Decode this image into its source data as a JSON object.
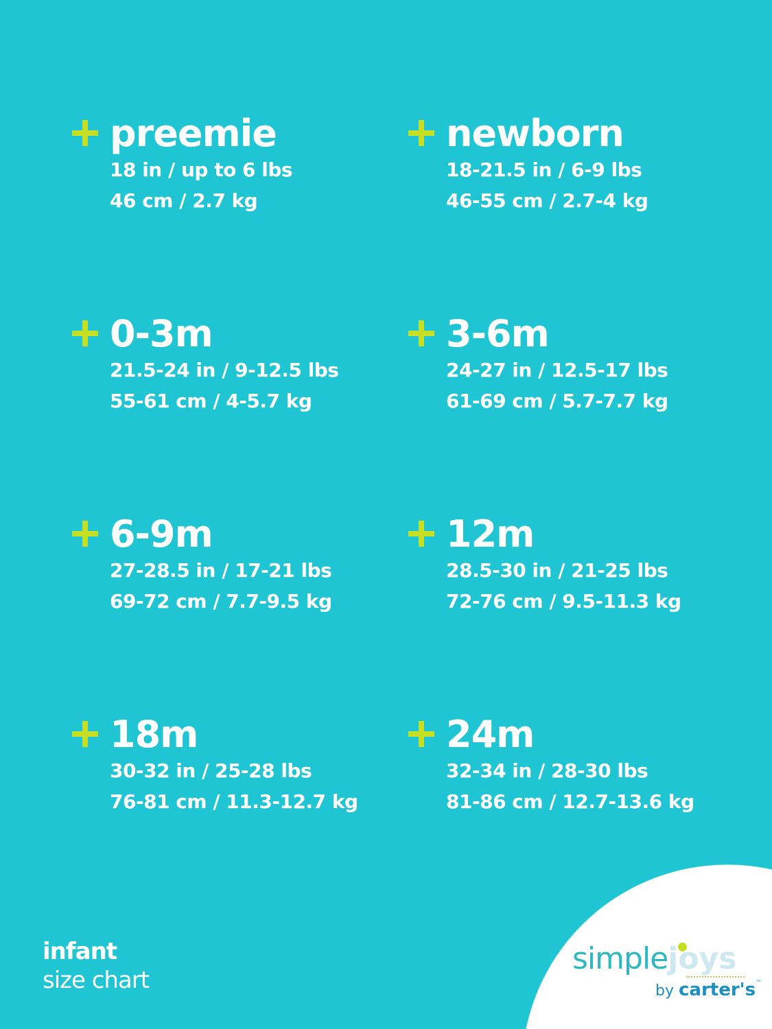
{
  "sizes": [
    {
      "label": "preemie",
      "imperial": "18 in / up to 6 lbs",
      "metric": "46 cm / 2.7 kg"
    },
    {
      "label": "newborn",
      "imperial": "18-21.5 in / 6-9 lbs",
      "metric": "46-55 cm / 2.7-4 kg"
    },
    {
      "label": "0-3m",
      "imperial": "21.5-24 in / 9-12.5 lbs",
      "metric": "55-61 cm / 4-5.7 kg"
    },
    {
      "label": "3-6m",
      "imperial": "24-27 in / 12.5-17 lbs",
      "metric": "61-69 cm / 5.7-7.7 kg"
    },
    {
      "label": "6-9m",
      "imperial": "27-28.5 in / 17-21 lbs",
      "metric": "69-72 cm / 7.7-9.5 kg"
    },
    {
      "label": "12m",
      "imperial": "28.5-30 in / 21-25 lbs",
      "metric": "72-76 cm / 9.5-11.3 kg"
    },
    {
      "label": "18m",
      "imperial": "30-32 in / 25-28 lbs",
      "metric": "76-81 cm / 11.3-12.7 kg"
    },
    {
      "label": "24m",
      "imperial": "32-34 in / 28-30 lbs",
      "metric": "81-86 cm / 12.7-13.6 kg"
    }
  ],
  "footer": {
    "line1": "infant",
    "line2": "size chart"
  },
  "logo": {
    "simple": "simple",
    "joys": "joys",
    "by": "by",
    "brand": "carter's",
    "tm": "™"
  },
  "colors": {
    "background": "#1fc5d3",
    "plus": "#c6df22",
    "text": "#ffffff"
  }
}
